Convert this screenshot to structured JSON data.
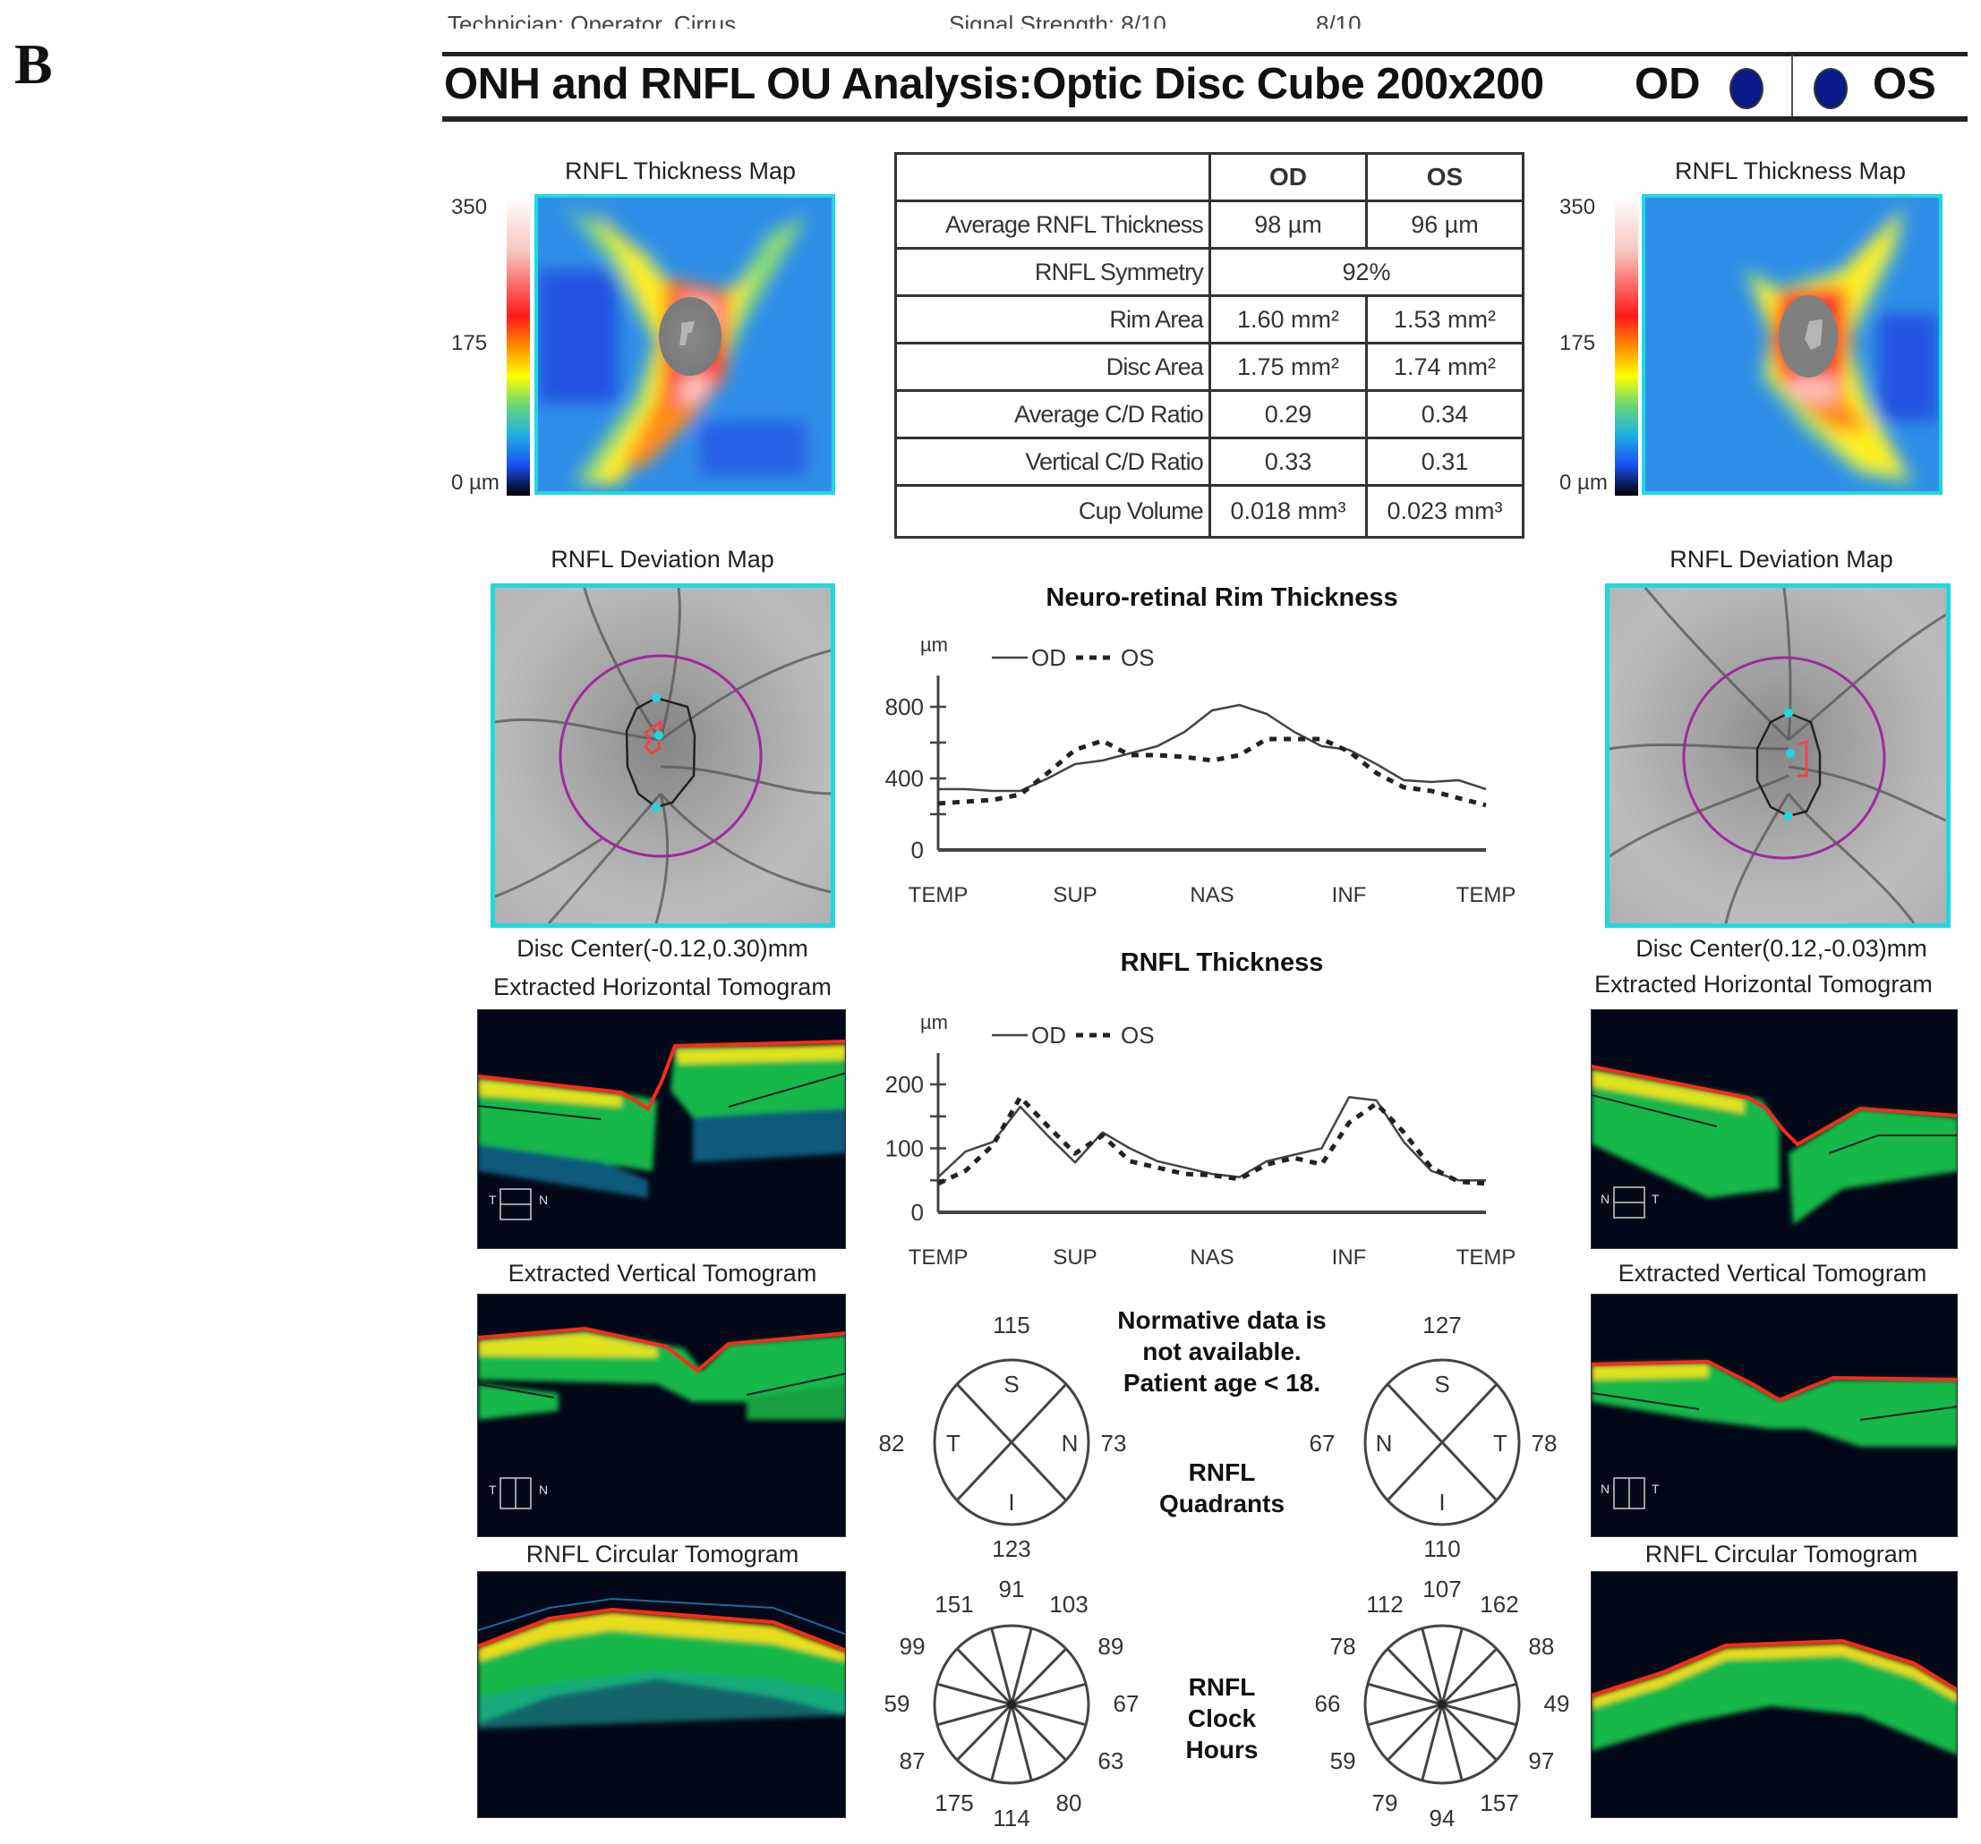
{
  "figure_label": "B",
  "header_cut": {
    "technician": "Technician: Operator, Cirrus",
    "signal_strength": "Signal Strength: 8/10",
    "signal_strength_os": "8/10"
  },
  "header": {
    "title": "ONH and RNFL OU Analysis:Optic Disc Cube 200x200",
    "od_label": "OD",
    "os_label": "OS",
    "od_color": "#0a1a8a",
    "os_color": "#0a1a8a"
  },
  "od": {
    "thickness_map_title": "RNFL Thickness Map",
    "colorbar_ticks": [
      "350",
      "175",
      "0 µm"
    ],
    "deviation_map_title": "RNFL Deviation Map",
    "disc_center": "Disc Center(-0.12,0.30)mm",
    "horizontal_tomogram_title": "Extracted Horizontal Tomogram",
    "horizontal_orientation": {
      "left": "T",
      "right": "N"
    },
    "vertical_tomogram_title": "Extracted Vertical Tomogram",
    "vertical_orientation": {
      "left": "T",
      "right": "N"
    },
    "circular_tomogram_title": "RNFL Circular Tomogram"
  },
  "os": {
    "thickness_map_title": "RNFL Thickness Map",
    "colorbar_ticks": [
      "350",
      "175",
      "0 µm"
    ],
    "deviation_map_title": "RNFL Deviation Map",
    "disc_center": "Disc Center(0.12,-0.03)mm",
    "horizontal_tomogram_title": "Extracted Horizontal Tomogram",
    "horizontal_orientation": {
      "left": "N",
      "right": "T"
    },
    "vertical_tomogram_title": "Extracted Vertical Tomogram",
    "vertical_orientation": {
      "left": "N",
      "right": "T"
    },
    "circular_tomogram_title": "RNFL Circular Tomogram"
  },
  "table": {
    "columns": [
      "",
      "OD",
      "OS"
    ],
    "rows": [
      {
        "label": "Average RNFL Thickness",
        "od": "98 µm",
        "os": "96 µm"
      },
      {
        "label": "RNFL Symmetry",
        "both": "92%"
      },
      {
        "label": "Rim Area",
        "od": "1.60 mm²",
        "os": "1.53 mm²"
      },
      {
        "label": "Disc Area",
        "od": "1.75 mm²",
        "os": "1.74 mm²"
      },
      {
        "label": "Average C/D Ratio",
        "od": "0.29",
        "os": "0.34"
      },
      {
        "label": "Vertical C/D Ratio",
        "od": "0.33",
        "os": "0.31"
      },
      {
        "label": "Cup Volume",
        "od": "0.018 mm³",
        "os": "0.023 mm³"
      }
    ]
  },
  "quadrants": {
    "note": [
      "Normative data is",
      "not available.",
      "Patient age < 18."
    ],
    "title": [
      "RNFL",
      "Quadrants"
    ],
    "od": {
      "S": "115",
      "T": "82",
      "N": "73",
      "I": "123",
      "letters": {
        "left": "T",
        "right": "N",
        "top": "S",
        "bottom": "I"
      }
    },
    "os": {
      "S": "127",
      "N": "67",
      "T": "78",
      "I": "110",
      "letters": {
        "left": "N",
        "right": "T",
        "top": "S",
        "bottom": "I"
      }
    }
  },
  "clock_hours": {
    "title": [
      "RNFL",
      "Clock",
      "Hours"
    ],
    "od": [
      "91",
      "103",
      "89",
      "67",
      "63",
      "80",
      "114",
      "175",
      "87",
      "59",
      "99",
      "151"
    ],
    "os": [
      "107",
      "162",
      "88",
      "49",
      "97",
      "157",
      "94",
      "79",
      "59",
      "66",
      "78",
      "112"
    ]
  },
  "chart_data": [
    {
      "type": "line",
      "title": "Neuro-retinal Rim Thickness",
      "ylabel": "µm",
      "xlabel": "",
      "x_tick_labels": [
        "TEMP",
        "SUP",
        "NAS",
        "INF",
        "TEMP"
      ],
      "y_ticks": [
        0,
        400,
        800
      ],
      "ylim": [
        0,
        900
      ],
      "legend": [
        "OD",
        "OS"
      ],
      "legend_styles": {
        "OD": "solid",
        "OS": "dashed"
      },
      "x": [
        0,
        0.05,
        0.1,
        0.15,
        0.2,
        0.25,
        0.3,
        0.35,
        0.4,
        0.45,
        0.5,
        0.55,
        0.6,
        0.65,
        0.7,
        0.75,
        0.8,
        0.85,
        0.9,
        0.95,
        1.0
      ],
      "series": [
        {
          "name": "OD",
          "values": [
            340,
            340,
            330,
            330,
            400,
            480,
            500,
            540,
            580,
            660,
            780,
            810,
            760,
            660,
            580,
            560,
            480,
            390,
            380,
            390,
            340
          ]
        },
        {
          "name": "OS",
          "values": [
            260,
            270,
            280,
            310,
            430,
            560,
            610,
            530,
            530,
            520,
            500,
            530,
            620,
            620,
            620,
            550,
            430,
            350,
            330,
            290,
            250
          ]
        }
      ]
    },
    {
      "type": "line",
      "title": "RNFL Thickness",
      "ylabel": "µm",
      "xlabel": "",
      "x_tick_labels": [
        "TEMP",
        "SUP",
        "NAS",
        "INF",
        "TEMP"
      ],
      "y_ticks": [
        0,
        100,
        200
      ],
      "ylim": [
        0,
        250
      ],
      "legend": [
        "OD",
        "OS"
      ],
      "legend_styles": {
        "OD": "solid",
        "OS": "dashed"
      },
      "x": [
        0,
        0.05,
        0.1,
        0.15,
        0.2,
        0.25,
        0.3,
        0.35,
        0.4,
        0.45,
        0.5,
        0.55,
        0.6,
        0.65,
        0.7,
        0.75,
        0.8,
        0.85,
        0.9,
        0.95,
        1.0
      ],
      "series": [
        {
          "name": "OD",
          "values": [
            55,
            95,
            110,
            165,
            120,
            78,
            125,
            100,
            80,
            70,
            60,
            55,
            80,
            90,
            100,
            180,
            175,
            110,
            65,
            50,
            50
          ]
        },
        {
          "name": "OS",
          "values": [
            45,
            65,
            105,
            180,
            135,
            92,
            120,
            80,
            70,
            60,
            58,
            52,
            75,
            85,
            75,
            140,
            170,
            125,
            70,
            48,
            45
          ]
        }
      ]
    }
  ]
}
